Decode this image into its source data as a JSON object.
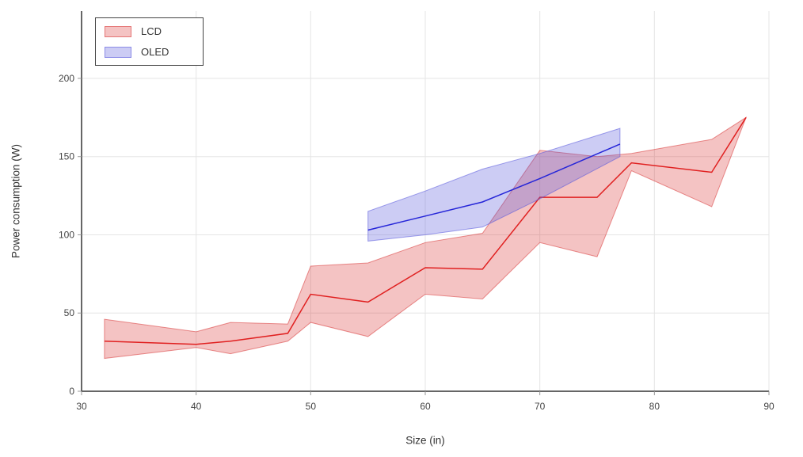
{
  "chart_data": {
    "type": "line",
    "title": "",
    "xlabel": "Size (in)",
    "ylabel": "Power consumption (W)",
    "xlim": [
      30,
      90
    ],
    "ylim": [
      0,
      243
    ],
    "x_ticks": [
      30,
      40,
      50,
      60,
      70,
      80,
      90
    ],
    "y_ticks": [
      0,
      50,
      100,
      150,
      200
    ],
    "grid": true,
    "legend_position": "top-left",
    "colors": {
      "grid": "#e5e5e5",
      "axis": "#333333",
      "tick_text": "#444444",
      "lcd_line": "#e02020",
      "lcd_band_fill": "rgba(214,39,40,0.28)",
      "lcd_band_edge": "rgba(214,39,40,0.5)",
      "oled_line": "#2525d8",
      "oled_band_fill": "rgba(85,85,220,0.3)",
      "oled_band_edge": "rgba(85,85,220,0.55)"
    },
    "series": [
      {
        "name": "LCD",
        "x": [
          32,
          40,
          43,
          48,
          50,
          55,
          60,
          65,
          70,
          75,
          78,
          85,
          88
        ],
        "mean": [
          32,
          30,
          32,
          37,
          62,
          57,
          79,
          78,
          124,
          124,
          146,
          140,
          175
        ],
        "lower": [
          21,
          28,
          24,
          32,
          44,
          35,
          62,
          59,
          95,
          86,
          141,
          118,
          175
        ],
        "upper": [
          46,
          38,
          44,
          43,
          80,
          82,
          95,
          101,
          154,
          150,
          152,
          161,
          175
        ]
      },
      {
        "name": "OLED",
        "x": [
          55,
          60,
          65,
          70,
          77
        ],
        "mean": [
          103,
          112,
          121,
          136,
          158
        ],
        "lower": [
          96,
          100,
          105,
          123,
          150
        ],
        "upper": [
          115,
          128,
          142,
          152,
          168
        ]
      }
    ]
  }
}
